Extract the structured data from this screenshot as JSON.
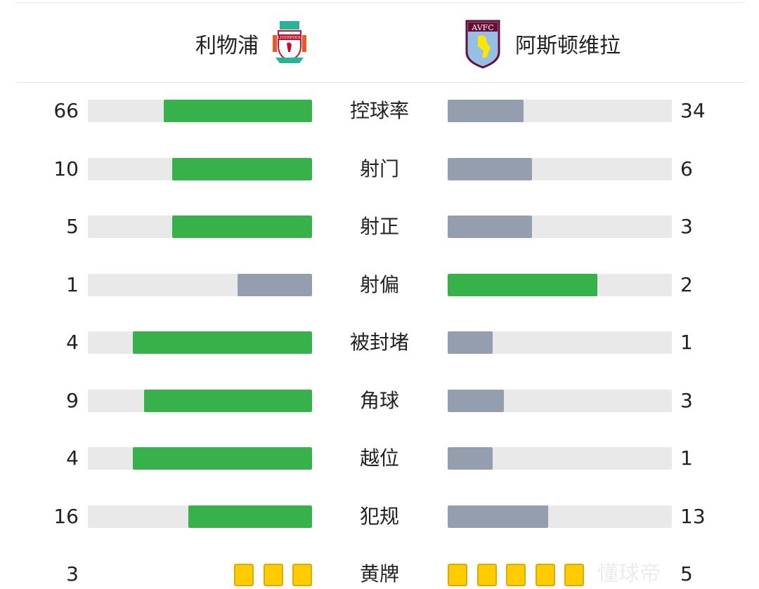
{
  "teams": {
    "home": "利物浦",
    "away": "阿斯顿维拉",
    "home_logo_text": "LIVERPOOL",
    "away_logo_text": "AVFC"
  },
  "colors": {
    "leader": "#37b24a",
    "trailer": "#959eae",
    "track": "#e9e9e9",
    "card": "#ffcc00"
  },
  "stats": [
    {
      "label": "控球率",
      "home": 66,
      "away": 34
    },
    {
      "label": "射门",
      "home": 10,
      "away": 6
    },
    {
      "label": "射正",
      "home": 5,
      "away": 3
    },
    {
      "label": "射偏",
      "home": 1,
      "away": 2
    },
    {
      "label": "被封堵",
      "home": 4,
      "away": 1
    },
    {
      "label": "角球",
      "home": 9,
      "away": 3
    },
    {
      "label": "越位",
      "home": 4,
      "away": 1
    },
    {
      "label": "犯规",
      "home": 16,
      "away": 13
    }
  ],
  "yellow": {
    "label": "黄牌",
    "home": 3,
    "away": 5
  },
  "watermark": "懂球帝"
}
